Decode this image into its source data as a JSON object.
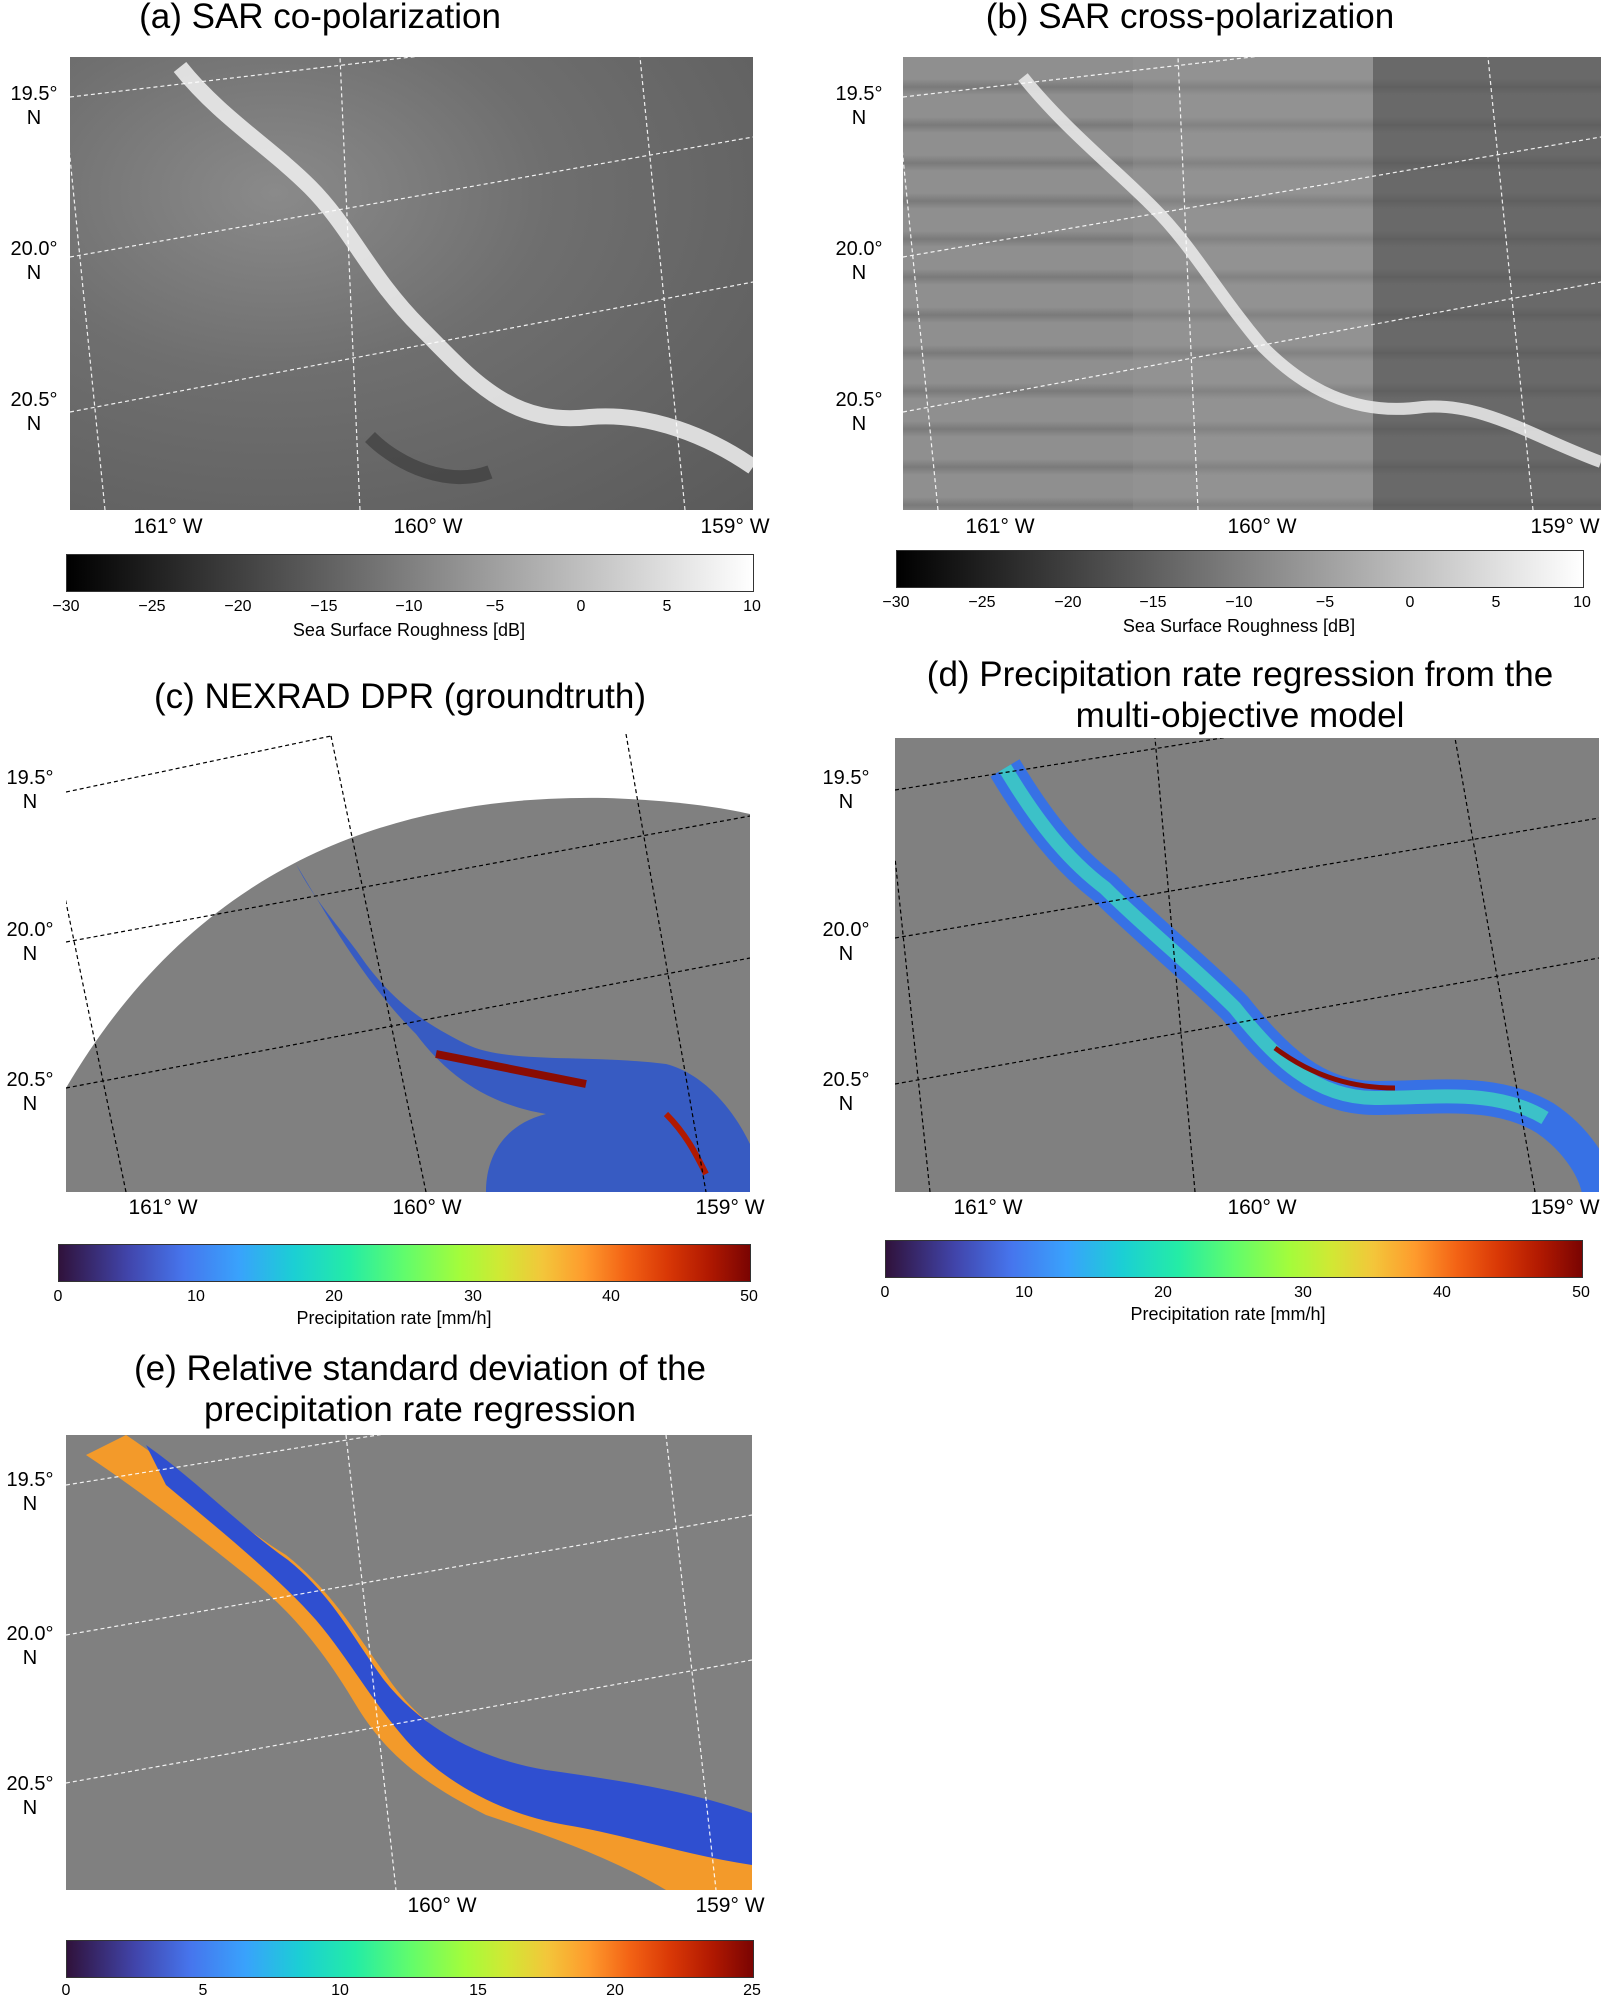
{
  "panels": {
    "a": {
      "title": "(a) SAR co-polarization",
      "lat": [
        "19.5°\nN",
        "20.0°\nN",
        "20.5°\nN"
      ],
      "lon": [
        "161° W",
        "160° W",
        "159° W"
      ],
      "colorbar": {
        "ticks": [
          "−30",
          "−25",
          "−20",
          "−15",
          "−10",
          "−5",
          "0",
          "5",
          "10"
        ],
        "label": "Sea Surface Roughness [dB]"
      }
    },
    "b": {
      "title": "(b) SAR cross-polarization",
      "lat": [
        "19.5°\nN",
        "20.0°\nN",
        "20.5°\nN"
      ],
      "lon": [
        "161° W",
        "160° W",
        "159° W"
      ],
      "colorbar": {
        "ticks": [
          "−30",
          "−25",
          "−20",
          "−15",
          "−10",
          "−5",
          "0",
          "5",
          "10"
        ],
        "label": "Sea Surface Roughness [dB]"
      }
    },
    "c": {
      "title": "(c) NEXRAD DPR (groundtruth)",
      "lat": [
        "19.5°\nN",
        "20.0°\nN",
        "20.5°\nN"
      ],
      "lon": [
        "161° W",
        "160° W",
        "159° W"
      ],
      "colorbar": {
        "ticks": [
          "0",
          "10",
          "20",
          "30",
          "40",
          "50"
        ],
        "label": "Precipitation rate [mm/h]"
      }
    },
    "d": {
      "title_line1": "(d) Precipitation rate regression from the",
      "title_line2": "multi-objective model",
      "lat": [
        "19.5°\nN",
        "20.0°\nN",
        "20.5°\nN"
      ],
      "lon": [
        "161° W",
        "160° W",
        "159° W"
      ],
      "colorbar": {
        "ticks": [
          "0",
          "10",
          "20",
          "30",
          "40",
          "50"
        ],
        "label": "Precipitation rate [mm/h]"
      }
    },
    "e": {
      "title_line1": "(e) Relative standard deviation of the",
      "title_line2": "precipitation rate regression",
      "lat": [
        "19.5°\nN",
        "20.0°\nN",
        "20.5°\nN"
      ],
      "lon": [
        "160° W",
        "159° W"
      ],
      "colorbar": {
        "ticks": [
          "0",
          "5",
          "10",
          "15",
          "20",
          "25"
        ]
      }
    }
  }
}
